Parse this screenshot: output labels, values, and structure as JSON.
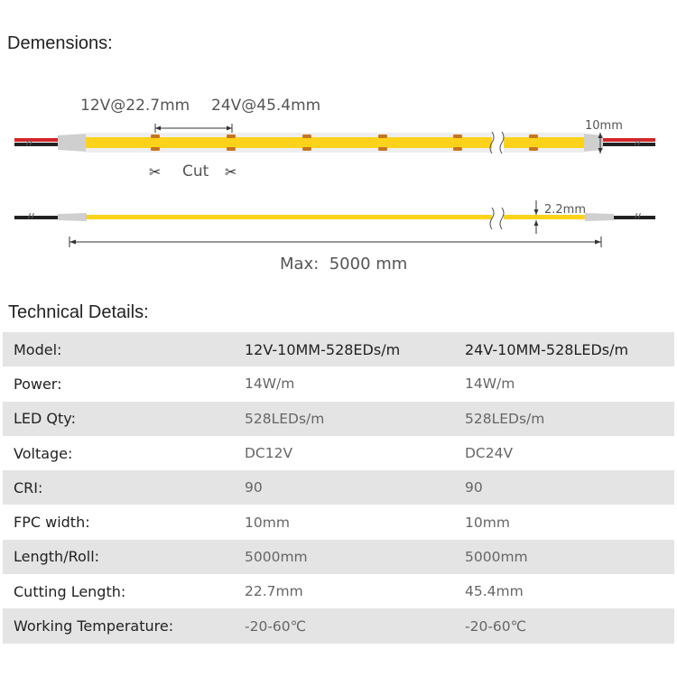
{
  "headings": {
    "dimensions": "Demensions:",
    "technical": "Technical Details:"
  },
  "diagram": {
    "pitch_12v": "12V@22.7mm",
    "pitch_24v": "24V@45.4mm",
    "cut_label": "Cut",
    "width_label": "10mm",
    "thickness_label": "2.2mm",
    "max_length_label": "Max:  5000 mm",
    "colors": {
      "led_strip": "#fdd21a",
      "pcb_edge": "#e9e9e9",
      "solder_pad": "#c8741e",
      "wire_red": "#d3262a",
      "wire_black": "#222222",
      "end_cap": "#cfcfcf"
    }
  },
  "table": {
    "header": {
      "label": "Model:",
      "v12": "12V-10MM-528EDs/m",
      "v24": "24V-10MM-528LEDs/m"
    },
    "rows": [
      {
        "label": "Power:",
        "v12": "14W/m",
        "v24": "14W/m"
      },
      {
        "label": "LED Qty:",
        "v12": "528LEDs/m",
        "v24": "528LEDs/m"
      },
      {
        "label": "Voltage:",
        "v12": "DC12V",
        "v24": "DC24V"
      },
      {
        "label": "CRI:",
        "v12": "90",
        "v24": "90"
      },
      {
        "label": "FPC width:",
        "v12": "10mm",
        "v24": "10mm"
      },
      {
        "label": "Length/Roll:",
        "v12": "5000mm",
        "v24": "5000mm"
      },
      {
        "label": "Cutting Length:",
        "v12": "22.7mm",
        "v24": "45.4mm"
      },
      {
        "label": "Working Temperature:",
        "v12": "-20-60℃",
        "v24": "-20-60℃"
      }
    ]
  }
}
